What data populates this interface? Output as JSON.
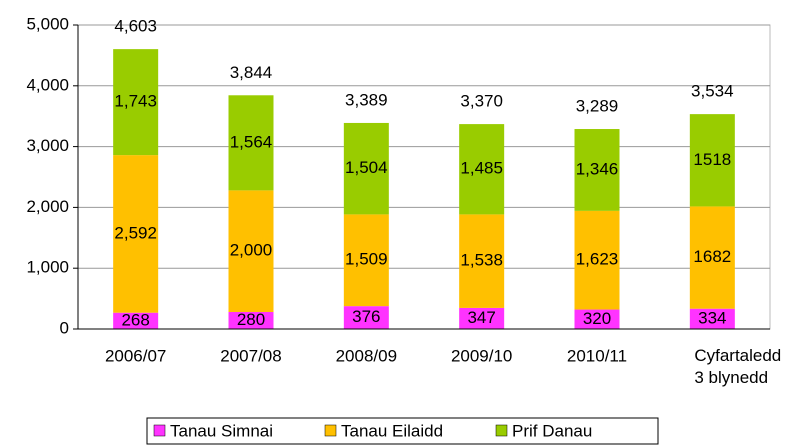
{
  "chart_data": {
    "type": "stacked_bar",
    "categories": [
      "2006/07",
      "2007/08",
      "2008/09",
      "2009/10",
      "2010/11",
      "Cyfartaledd 3 blynedd"
    ],
    "series": [
      {
        "name": "Tanau Simnai",
        "color": "#ff33ff",
        "values": [
          268,
          280,
          376,
          347,
          320,
          334
        ]
      },
      {
        "name": "Tanau Eilaidd",
        "color": "#ffc000",
        "values": [
          2592,
          2000,
          1509,
          1538,
          1623,
          1682
        ],
        "value_labels": [
          "2,592",
          "2,000",
          "1,509",
          "1,538",
          "1,623",
          "1682"
        ]
      },
      {
        "name": "Prif Danau",
        "color": "#99cc00",
        "values": [
          1743,
          1564,
          1504,
          1485,
          1346,
          1518
        ],
        "value_labels": [
          "1,743",
          "1,564",
          "1,504",
          "1,485",
          "1,346",
          "1518"
        ]
      }
    ],
    "totals": {
      "values": [
        4603,
        3844,
        3389,
        3370,
        3289,
        3534
      ],
      "value_labels": [
        "4,603",
        "3,844",
        "3,389",
        "3,370",
        "3,289",
        "3,534"
      ]
    },
    "ylim": [
      0,
      5000
    ],
    "yticks": [
      {
        "value": 0,
        "label": "0"
      },
      {
        "value": 1000,
        "label": "1,000"
      },
      {
        "value": 2000,
        "label": "2,000"
      },
      {
        "value": 3000,
        "label": "3,000"
      },
      {
        "value": 4000,
        "label": "4,000"
      },
      {
        "value": 5000,
        "label": "5,000"
      }
    ],
    "grid": true,
    "legend": "bottom"
  }
}
